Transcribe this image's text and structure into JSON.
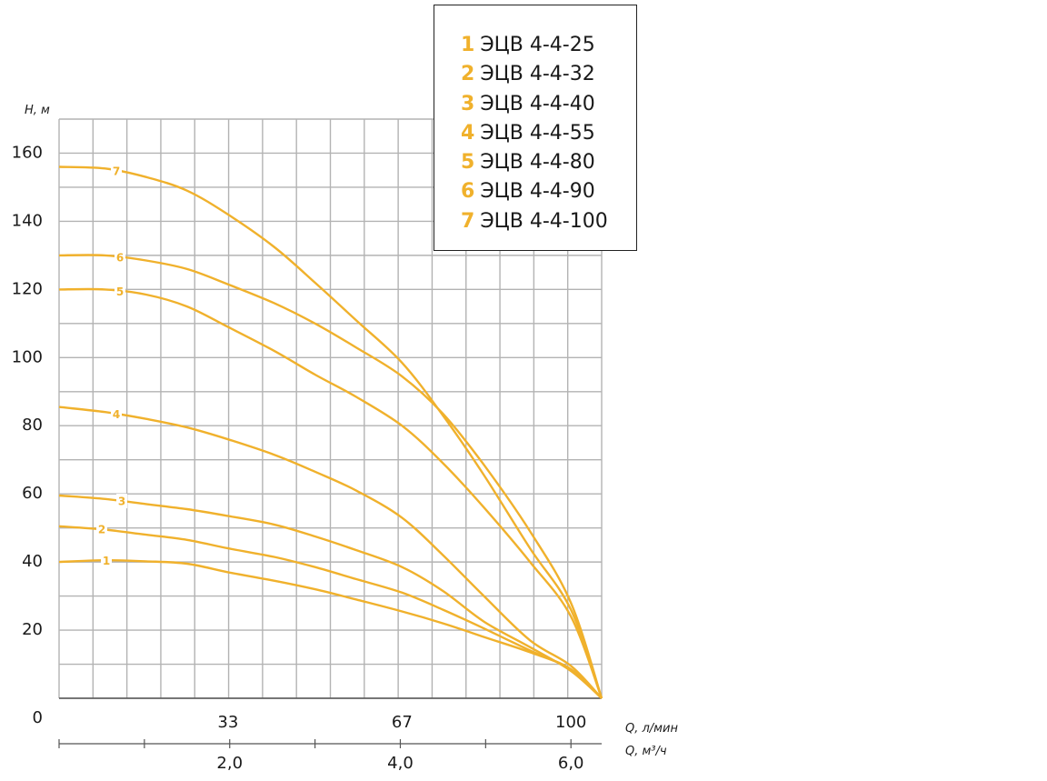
{
  "colors": {
    "curve": "#f0b12c",
    "grid": "#b3b3b3",
    "axis": "#555555",
    "text": "#1a1a1a"
  },
  "chart_data": {
    "type": "line",
    "ylabel": "H, м",
    "ylim": [
      0,
      170
    ],
    "y_ticks": [
      "0",
      "20",
      "40",
      "60",
      "80",
      "100",
      "120",
      "140",
      "160"
    ],
    "xlabel": "Q, л/мин",
    "xlim": [
      0,
      106
    ],
    "x_ticks": [
      {
        "value": 33,
        "label": "33"
      },
      {
        "value": 67,
        "label": "67"
      },
      {
        "value": 100,
        "label": "100"
      }
    ],
    "xlabel2": "Q, м³/ч",
    "x2_ticks": [
      {
        "value": 2.0,
        "label": "2,0"
      },
      {
        "value": 4.0,
        "label": "4,0"
      },
      {
        "value": 6.0,
        "label": "6,0"
      }
    ],
    "grid": true,
    "legend_position": "top-right",
    "series": [
      {
        "name": "ЭЦВ 4-4-25",
        "label": "1",
        "x": [
          0,
          9,
          17,
          25,
          33,
          42,
          50,
          58,
          67,
          75,
          83,
          92,
          100,
          106
        ],
        "y": [
          40,
          40.5,
          40.2,
          39.5,
          37,
          34.5,
          32,
          29,
          25.5,
          22,
          18,
          13.5,
          8.5,
          0
        ]
      },
      {
        "name": "ЭЦВ 4-4-32",
        "label": "2",
        "x": [
          0,
          9,
          17,
          25,
          33,
          42,
          50,
          58,
          67,
          75,
          83,
          92,
          100,
          106
        ],
        "y": [
          50.5,
          49.5,
          48,
          46.5,
          44,
          41.5,
          38.5,
          35,
          31,
          26,
          20.5,
          14,
          8.5,
          0
        ]
      },
      {
        "name": "ЭЦВ 4-4-40",
        "label": "3",
        "x": [
          0,
          9,
          17,
          25,
          33,
          42,
          50,
          58,
          67,
          75,
          83,
          92,
          100,
          106
        ],
        "y": [
          59.5,
          58.5,
          57,
          55.5,
          53.5,
          51,
          47.5,
          43.5,
          38.5,
          31.5,
          22.5,
          15,
          8,
          0
        ]
      },
      {
        "name": "ЭЦВ 4-4-55",
        "label": "4",
        "x": [
          0,
          9,
          17,
          25,
          33,
          42,
          50,
          58,
          67,
          75,
          83,
          92,
          100,
          106
        ],
        "y": [
          85.5,
          84,
          82,
          79.5,
          76,
          71.5,
          66.5,
          61,
          53,
          42,
          30,
          17,
          9.5,
          0
        ]
      },
      {
        "name": "ЭЦВ 4-4-80",
        "label": "5",
        "x": [
          0,
          9,
          17,
          25,
          33,
          42,
          50,
          58,
          67,
          75,
          83,
          92,
          100,
          106
        ],
        "y": [
          120,
          120,
          118.5,
          115,
          109,
          102,
          95,
          88.5,
          80,
          69,
          56,
          40,
          24,
          0
        ]
      },
      {
        "name": "ЭЦВ 4-4-90",
        "label": "6",
        "x": [
          0,
          9,
          17,
          25,
          33,
          42,
          50,
          58,
          67,
          75,
          83,
          92,
          100,
          106
        ],
        "y": [
          130,
          130,
          128.5,
          126,
          121.5,
          116,
          110,
          103,
          94.5,
          83.5,
          68.5,
          49,
          28,
          0
        ]
      },
      {
        "name": "ЭЦВ 4-4-100",
        "label": "7",
        "x": [
          0,
          9,
          17,
          25,
          33,
          42,
          50,
          58,
          67,
          75,
          83,
          92,
          100,
          106
        ],
        "y": [
          156,
          155.5,
          153,
          149,
          142,
          132.5,
          122,
          111,
          98.5,
          83,
          65.5,
          44,
          26,
          0
        ]
      }
    ]
  }
}
